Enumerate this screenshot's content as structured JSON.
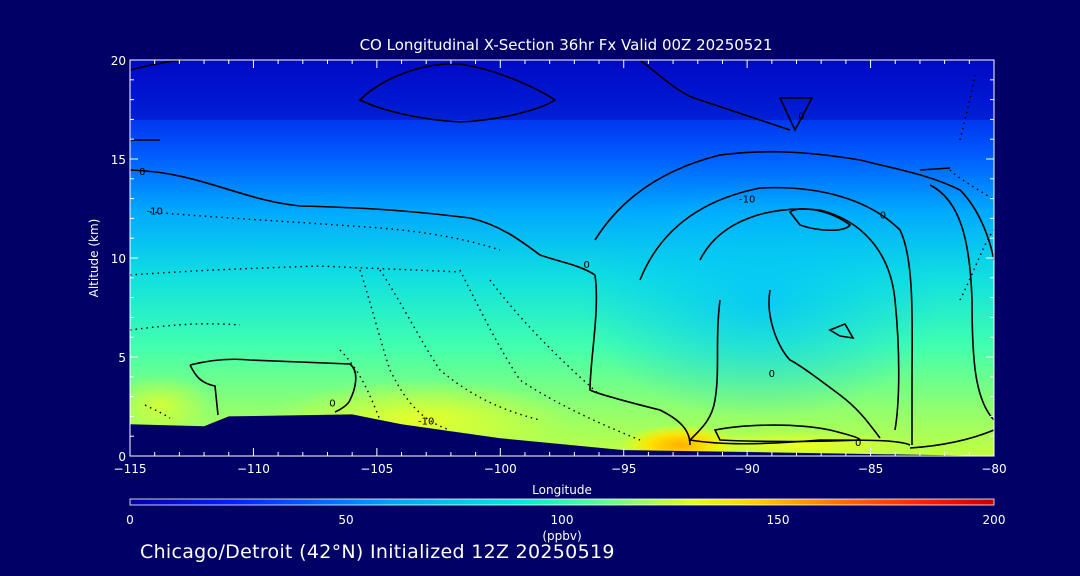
{
  "chart_data": {
    "type": "contour",
    "title": "CO Longitudinal X-Section 36hr  Fx Valid 00Z 20250521",
    "xlabel": "Longitude",
    "ylabel": "Altitude (km)",
    "xlim": [
      -115,
      -80
    ],
    "ylim": [
      0,
      20
    ],
    "x_ticks": [
      -115,
      -110,
      -105,
      -100,
      -95,
      -90,
      -85,
      -80
    ],
    "y_ticks": [
      0,
      5,
      10,
      15,
      20
    ],
    "x_tick_labels": [
      "−115",
      "−110",
      "−105",
      "−100",
      "−95",
      "−90",
      "−85",
      "−80"
    ],
    "y_tick_labels": [
      "0",
      "5",
      "10",
      "15",
      "20"
    ],
    "colorbar": {
      "min": 0,
      "max": 200,
      "ticks": [
        0,
        50,
        100,
        150,
        200
      ],
      "tick_labels": [
        "0",
        "50",
        "100",
        "150",
        "200"
      ],
      "units": "(ppbv)",
      "colors": [
        "#0000cc",
        "#0040ff",
        "#00a0ff",
        "#00e0e0",
        "#40ffb0",
        "#a0ff60",
        "#ffff00",
        "#ffa000",
        "#ff3000",
        "#c00000"
      ]
    },
    "contour_labels": [
      {
        "text": "0",
        "lon": -114.5,
        "alt": 14.2
      },
      {
        "text": "-10",
        "lon": -114.0,
        "alt": 12.2
      },
      {
        "text": "0",
        "lon": -96.5,
        "alt": 9.5
      },
      {
        "text": "-10",
        "lon": -90.0,
        "alt": 12.8
      },
      {
        "text": "0",
        "lon": -84.5,
        "alt": 12.0
      },
      {
        "text": "0",
        "lon": -106.8,
        "alt": 2.5
      },
      {
        "text": "-10",
        "lon": -103.0,
        "alt": 1.6
      },
      {
        "text": "0",
        "lon": -89.0,
        "alt": 4.0
      },
      {
        "text": "0",
        "lon": -85.5,
        "alt": 0.5
      },
      {
        "text": "0",
        "lon": -87.8,
        "alt": 17.0
      }
    ],
    "surface_terrain_km": [
      {
        "lon": -115,
        "alt": 1.6
      },
      {
        "lon": -112,
        "alt": 1.5
      },
      {
        "lon": -111,
        "alt": 2.0
      },
      {
        "lon": -106,
        "alt": 2.1
      },
      {
        "lon": -104,
        "alt": 1.6
      },
      {
        "lon": -100,
        "alt": 0.9
      },
      {
        "lon": -95,
        "alt": 0.3
      },
      {
        "lon": -90,
        "alt": 0.2
      },
      {
        "lon": -80,
        "alt": 0.0
      }
    ]
  },
  "caption": "Chicago/Detroit (42°N) Initialized 12Z 20250519"
}
